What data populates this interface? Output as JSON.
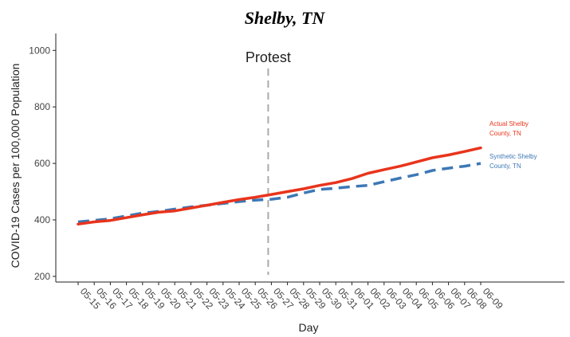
{
  "chart_data": {
    "type": "line",
    "title": "Shelby, TN",
    "xlabel": "Day",
    "ylabel": "COVID-19 Cases per 100,000 Population",
    "ylim": [
      180,
      1060
    ],
    "yticks": [
      200,
      400,
      600,
      800,
      1000
    ],
    "grid": false,
    "categories": [
      "05-15",
      "05-16",
      "05-17",
      "05-18",
      "05-19",
      "05-20",
      "05-21",
      "05-22",
      "05-23",
      "05-24",
      "05-25",
      "05-26",
      "05-27",
      "05-28",
      "05-29",
      "05-30",
      "05-31",
      "06-01",
      "06-02",
      "06-03",
      "06-04",
      "06-05",
      "06-06",
      "06-07",
      "06-08",
      "06-09"
    ],
    "series": [
      {
        "name": "Actual Shelby County, TN",
        "label_lines": [
          "Actual Shelby",
          "County, TN"
        ],
        "color": "#e8341c",
        "style": "solid",
        "values": [
          385,
          393,
          398,
          408,
          418,
          427,
          432,
          442,
          452,
          462,
          472,
          480,
          490,
          500,
          510,
          522,
          532,
          546,
          565,
          578,
          590,
          605,
          620,
          630,
          642,
          655
        ]
      },
      {
        "name": "Synthetic Shelby County, TN",
        "label_lines": [
          "Synthetic Shelby",
          "County, TN"
        ],
        "color": "#3d78b5",
        "style": "dashed",
        "values": [
          393,
          398,
          404,
          414,
          424,
          430,
          438,
          446,
          452,
          458,
          465,
          470,
          473,
          480,
          495,
          508,
          512,
          518,
          522,
          535,
          548,
          560,
          575,
          583,
          590,
          600
        ]
      }
    ],
    "annotation": {
      "text": "Protest",
      "at_category": "05-27",
      "line_color": "#aaaaaa"
    }
  }
}
